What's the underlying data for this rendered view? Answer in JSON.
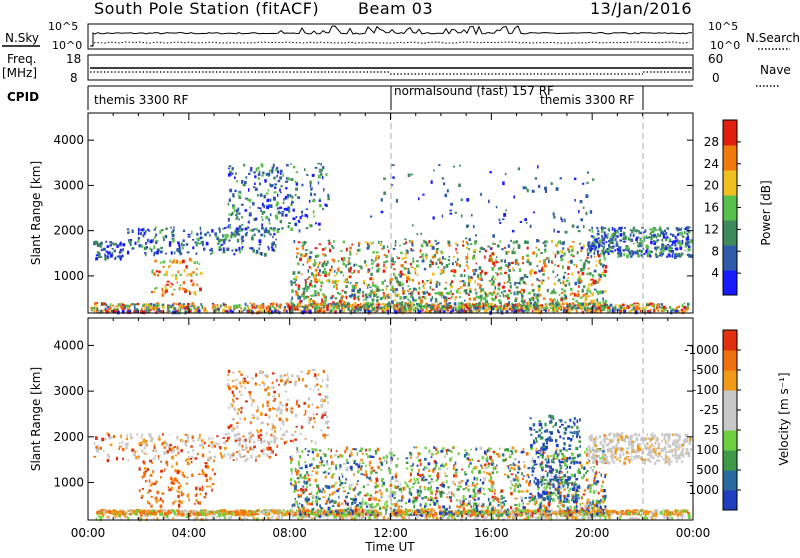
{
  "header": {
    "station": "South Pole Station (fitACF)",
    "beam": "Beam 03",
    "date": "13/Jan/2016"
  },
  "top_panels": {
    "nsky_label": "N.Sky",
    "nsearch_label": "N.Search",
    "nsky_ticks": [
      "10^5",
      "10^0"
    ],
    "freq_label_1": "Freq.",
    "freq_label_2": "[MHz]",
    "freq_ticks": [
      "18",
      "8"
    ],
    "nave_label": "Nave",
    "nave_ticks": [
      "60",
      "0"
    ],
    "cpid_label": "CPID",
    "cpid_segments": [
      "themis 3300 RF",
      "normalsound (fast) 157 RF",
      "themis 3300 RF"
    ]
  },
  "chart_data": [
    {
      "type": "heatmap",
      "name": "power",
      "ylabel": "Slant Range [km]",
      "yticks": [
        1000,
        2000,
        3000,
        4000
      ],
      "ylim": [
        180,
        4600
      ],
      "xlim_hours": [
        0,
        24
      ],
      "colorbar": {
        "label": "Power [dB]",
        "ticks": [
          "4",
          "8",
          "12",
          "16",
          "20",
          "24",
          "28"
        ],
        "colors": [
          "#1a1aff",
          "#2f5ba8",
          "#3f8a5a",
          "#58c14b",
          "#f0c020",
          "#f07a10",
          "#e02010"
        ]
      }
    },
    {
      "type": "heatmap",
      "name": "velocity",
      "ylabel": "Slant Range [km]",
      "yticks": [
        1000,
        2000,
        3000,
        4000
      ],
      "ylim": [
        180,
        4600
      ],
      "xlim_hours": [
        0,
        24
      ],
      "xlabel": "Time UT",
      "xticks": [
        "00:00",
        "04:00",
        "08:00",
        "12:00",
        "16:00",
        "20:00",
        "00:00"
      ],
      "colorbar": {
        "label": "Velocity [m s⁻¹]",
        "ticks": [
          "1000",
          "500",
          "100",
          "25",
          "-25",
          "-100",
          "-500",
          "-1000"
        ],
        "colors": [
          "#1f3fbf",
          "#2a6aa0",
          "#3e9a48",
          "#6ed040",
          "#c8c8c8",
          "#c8c8c8",
          "#f09a18",
          "#f07010",
          "#e03010"
        ]
      }
    }
  ]
}
